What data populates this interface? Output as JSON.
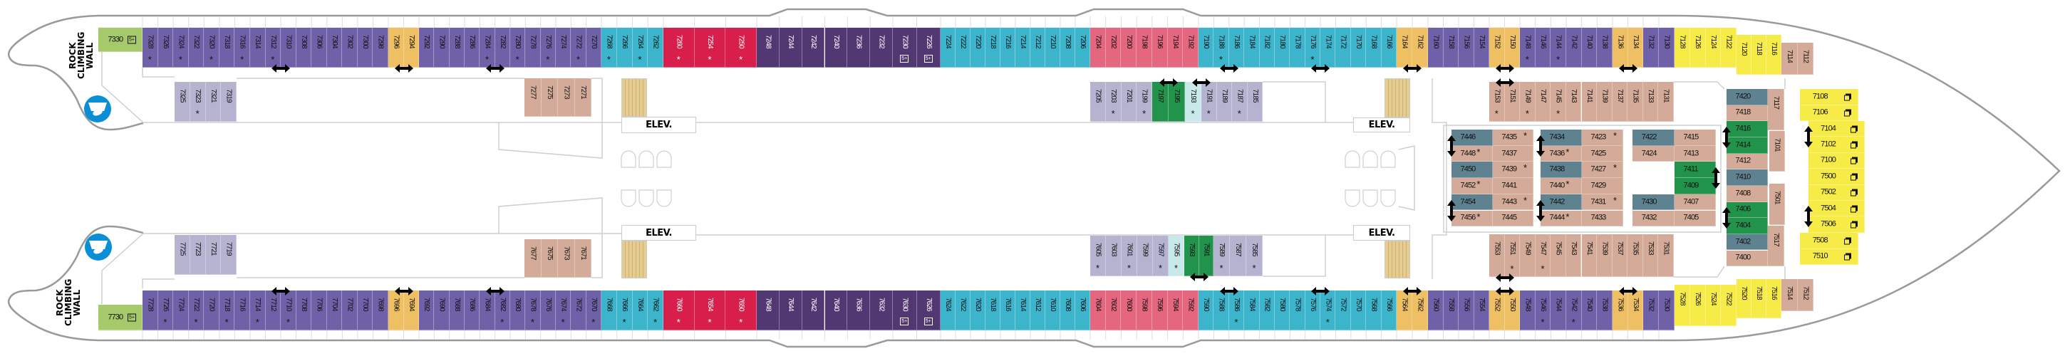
{
  "labels": {
    "rock_climbing_wall": "ROCK CLIMBING WALL",
    "elevator": "ELEV."
  },
  "icons": {
    "star": "star-icon",
    "five_plus": "five-plus-icon",
    "suite": "suite-icon",
    "connecting": "connecting-arrow-icon",
    "rock_wall": "rock-climbing-icon"
  },
  "icon_text": {
    "five_plus": "5+",
    "star": "*"
  },
  "colors": {
    "purple": "#6f61a8",
    "orange": "#efbf63",
    "teal": "#3bb4cc",
    "red": "#d81e4b",
    "dark_purple": "#513872",
    "pink": "#e5667f",
    "yellow": "#f7eb48",
    "tan": "#d3ab98",
    "green_light": "#a5c96b",
    "lavender": "#b6b3d1",
    "aqua_light": "#c9e8ea",
    "green": "#22934b",
    "slate": "#5f8291"
  },
  "top_outer": [
    {
      "cat": "green_light",
      "cabins": [
        "7330"
      ]
    },
    {
      "cat": "purple",
      "cabins": [
        "7328",
        "7326",
        "7324",
        "7322",
        "7320",
        "7318",
        "7316",
        "7314",
        "7312",
        "7310",
        "7308",
        "7306",
        "7304",
        "7302",
        "7300",
        "7298"
      ]
    },
    {
      "cat": "orange",
      "cabins": [
        "7296",
        "7294"
      ]
    },
    {
      "cat": "purple",
      "cabins": [
        "7292",
        "7290",
        "7288",
        "7286",
        "7284",
        "7282",
        "7280",
        "7278",
        "7276",
        "7274",
        "7272",
        "7270"
      ]
    },
    {
      "cat": "teal",
      "cabins": [
        "7268",
        "7266",
        "7264",
        "7262"
      ]
    },
    {
      "cat": "red",
      "cabins": [
        "7260",
        "7254",
        "7250"
      ]
    },
    {
      "cat": "dark_purple",
      "cabins": [
        "7248",
        "7244",
        "7242",
        "7240",
        "7236",
        "7232"
      ]
    },
    {
      "cat": "dark_purple",
      "cabins": [
        "7230",
        "7226"
      ]
    },
    {
      "cat": "teal",
      "cabins": [
        "7224",
        "7222",
        "7220",
        "7218",
        "7216",
        "7214",
        "7212",
        "7210",
        "7208",
        "7206"
      ]
    },
    {
      "cat": "pink",
      "cabins": [
        "7204",
        "7202",
        "7200",
        "7198",
        "7196",
        "7194",
        "7192"
      ]
    },
    {
      "cat": "teal",
      "cabins": [
        "7190",
        "7188",
        "7186",
        "7184",
        "7182",
        "7180",
        "7178",
        "7176",
        "7174",
        "7172",
        "7170",
        "7168",
        "7166"
      ]
    },
    {
      "cat": "orange",
      "cabins": [
        "7164",
        "7162"
      ]
    },
    {
      "cat": "purple",
      "cabins": [
        "7160",
        "7158",
        "7156",
        "7154"
      ]
    },
    {
      "cat": "orange",
      "cabins": [
        "7152",
        "7150"
      ]
    },
    {
      "cat": "purple",
      "cabins": [
        "7148",
        "7146",
        "7144",
        "7142",
        "7140",
        "7138"
      ]
    },
    {
      "cat": "orange",
      "cabins": [
        "7136",
        "7134"
      ]
    },
    {
      "cat": "purple",
      "cabins": [
        "7132",
        "7130"
      ]
    },
    {
      "cat": "yellow",
      "cabins": [
        "7128",
        "7126",
        "7124",
        "7122"
      ]
    },
    {
      "cat": "yellow",
      "cabins": [
        "7120",
        "7118",
        "7116"
      ]
    },
    {
      "cat": "tan",
      "cabins": [
        "7114",
        "7112"
      ]
    }
  ],
  "bottom_outer": [
    {
      "cat": "green_light",
      "cabins": [
        "7730"
      ]
    },
    {
      "cat": "purple",
      "cabins": [
        "7728",
        "7726",
        "7724",
        "7722",
        "7720",
        "7718",
        "7716",
        "7714",
        "7712",
        "7710",
        "7708",
        "7706",
        "7704",
        "7702",
        "7700",
        "7698"
      ]
    },
    {
      "cat": "orange",
      "cabins": [
        "7696",
        "7694"
      ]
    },
    {
      "cat": "purple",
      "cabins": [
        "7692",
        "7690",
        "7688",
        "7686",
        "7684",
        "7682",
        "7680",
        "7678",
        "7676",
        "7674",
        "7672",
        "7670"
      ]
    },
    {
      "cat": "teal",
      "cabins": [
        "7668",
        "7666",
        "7664",
        "7662"
      ]
    },
    {
      "cat": "red",
      "cabins": [
        "7660",
        "7654",
        "7650"
      ]
    },
    {
      "cat": "dark_purple",
      "cabins": [
        "7648",
        "7644",
        "7642",
        "7640",
        "7636",
        "7632"
      ]
    },
    {
      "cat": "dark_purple",
      "cabins": [
        "7630",
        "7626"
      ]
    },
    {
      "cat": "teal",
      "cabins": [
        "7624",
        "7622",
        "7620",
        "7618",
        "7616",
        "7614",
        "7612",
        "7610",
        "7608",
        "7606"
      ]
    },
    {
      "cat": "pink",
      "cabins": [
        "7604",
        "7602",
        "7600",
        "7598",
        "7596",
        "7594",
        "7592"
      ]
    },
    {
      "cat": "teal",
      "cabins": [
        "7590",
        "7588",
        "7586",
        "7584",
        "7582",
        "7580",
        "7578",
        "7576",
        "7574",
        "7572",
        "7570",
        "7568",
        "7566"
      ]
    },
    {
      "cat": "orange",
      "cabins": [
        "7564",
        "7562"
      ]
    },
    {
      "cat": "purple",
      "cabins": [
        "7560",
        "7558",
        "7556",
        "7554"
      ]
    },
    {
      "cat": "orange",
      "cabins": [
        "7552",
        "7550"
      ]
    },
    {
      "cat": "purple",
      "cabins": [
        "7548",
        "7546",
        "7544",
        "7542",
        "7540",
        "7538"
      ]
    },
    {
      "cat": "orange",
      "cabins": [
        "7536",
        "7534"
      ]
    },
    {
      "cat": "purple",
      "cabins": [
        "7532",
        "7530"
      ]
    },
    {
      "cat": "yellow",
      "cabins": [
        "7528",
        "7526",
        "7524",
        "7522"
      ]
    },
    {
      "cat": "yellow",
      "cabins": [
        "7520",
        "7518",
        "7516"
      ]
    },
    {
      "cat": "tan",
      "cabins": [
        "7514",
        "7512"
      ]
    }
  ],
  "top_inner": [
    {
      "cat": "lavender",
      "cabins": [
        "7325",
        "7323",
        "7321",
        "7319"
      ]
    },
    {
      "cat": "tan",
      "cabins": [
        "7277",
        "7275",
        "7273",
        "7271"
      ]
    },
    {
      "cat": "lavender",
      "cabins": [
        "7205",
        "7203",
        "7201",
        "7199"
      ]
    },
    {
      "cat": "green",
      "cabins": [
        "7197",
        "7195"
      ]
    },
    {
      "cat": "aqua_light",
      "cabins": [
        "7193"
      ]
    },
    {
      "cat": "lavender",
      "cabins": [
        "7191",
        "7189",
        "7187",
        "7185"
      ]
    },
    {
      "cat": "tan",
      "cabins": [
        "7153",
        "7151",
        "7149",
        "7147",
        "7145",
        "7143",
        "7141",
        "7139",
        "7137",
        "7135",
        "7133",
        "7131"
      ]
    }
  ],
  "bottom_inner": [
    {
      "cat": "lavender",
      "cabins": [
        "7725",
        "7723",
        "7721",
        "7719"
      ]
    },
    {
      "cat": "tan",
      "cabins": [
        "7677",
        "7675",
        "7673",
        "7671"
      ]
    },
    {
      "cat": "lavender",
      "cabins": [
        "7605",
        "7603",
        "7601",
        "7599",
        "7597"
      ]
    },
    {
      "cat": "aqua_light",
      "cabins": [
        "7595"
      ]
    },
    {
      "cat": "green",
      "cabins": [
        "7593",
        "7591"
      ]
    },
    {
      "cat": "lavender",
      "cabins": [
        "7589",
        "7587",
        "7585"
      ]
    },
    {
      "cat": "tan",
      "cabins": [
        "7553",
        "7551",
        "7549",
        "7547",
        "7545",
        "7543",
        "7541",
        "7539",
        "7537",
        "7535",
        "7533",
        "7531"
      ]
    }
  ],
  "forward_stacks": [
    {
      "cells": [
        {
          "n": "7446",
          "cat": "slate"
        },
        {
          "n": "7448",
          "cat": "tan"
        },
        {
          "n": "7450",
          "cat": "slate"
        },
        {
          "n": "7452",
          "cat": "tan"
        },
        {
          "n": "7454",
          "cat": "slate"
        },
        {
          "n": "7456",
          "cat": "tan"
        }
      ]
    },
    {
      "cells": [
        {
          "n": "7435",
          "cat": "tan"
        },
        {
          "n": "7437",
          "cat": "tan"
        },
        {
          "n": "7439",
          "cat": "tan"
        },
        {
          "n": "7441",
          "cat": "tan"
        },
        {
          "n": "7443",
          "cat": "tan"
        },
        {
          "n": "7445",
          "cat": "tan"
        }
      ]
    },
    {
      "cells": [
        {
          "n": "7434",
          "cat": "slate"
        },
        {
          "n": "7436",
          "cat": "tan"
        },
        {
          "n": "7438",
          "cat": "slate"
        },
        {
          "n": "7440",
          "cat": "tan"
        },
        {
          "n": "7442",
          "cat": "slate"
        },
        {
          "n": "7444",
          "cat": "tan"
        }
      ]
    },
    {
      "cells": [
        {
          "n": "7423",
          "cat": "tan"
        },
        {
          "n": "7425",
          "cat": "tan"
        },
        {
          "n": "7427",
          "cat": "tan"
        },
        {
          "n": "7429",
          "cat": "tan"
        },
        {
          "n": "7431",
          "cat": "tan"
        },
        {
          "n": "7433",
          "cat": "tan"
        }
      ]
    },
    {
      "cells": [
        {
          "n": "7422",
          "cat": "slate"
        },
        {
          "n": "7424",
          "cat": "tan"
        },
        null,
        null,
        {
          "n": "7430",
          "cat": "slate"
        },
        {
          "n": "7432",
          "cat": "tan"
        }
      ]
    },
    {
      "cells": [
        {
          "n": "7415",
          "cat": "tan"
        },
        {
          "n": "7413",
          "cat": "tan"
        },
        {
          "n": "7411",
          "cat": "green"
        },
        {
          "n": "7409",
          "cat": "green"
        },
        {
          "n": "7407",
          "cat": "tan"
        },
        {
          "n": "7405",
          "cat": "tan"
        }
      ]
    },
    {
      "cells": [
        {
          "n": "7420",
          "cat": "slate"
        },
        {
          "n": "7418",
          "cat": "tan"
        },
        {
          "n": "7416",
          "cat": "green"
        },
        {
          "n": "7414",
          "cat": "green"
        },
        {
          "n": "7412",
          "cat": "tan"
        },
        {
          "n": "7410",
          "cat": "slate"
        },
        {
          "n": "7408",
          "cat": "tan"
        },
        {
          "n": "7406",
          "cat": "green"
        },
        {
          "n": "7404",
          "cat": "green"
        },
        {
          "n": "7402",
          "cat": "slate"
        },
        {
          "n": "7400",
          "cat": "tan"
        }
      ]
    },
    {
      "cells": [
        {
          "n": "7108",
          "cat": "yellow"
        },
        {
          "n": "7106",
          "cat": "yellow"
        }
      ]
    },
    {
      "cells": [
        {
          "n": "7104",
          "cat": "yellow"
        },
        {
          "n": "7102",
          "cat": "yellow"
        },
        {
          "n": "7100",
          "cat": "yellow"
        },
        {
          "n": "7500",
          "cat": "yellow"
        },
        {
          "n": "7502",
          "cat": "yellow"
        },
        {
          "n": "7504",
          "cat": "yellow"
        },
        {
          "n": "7506",
          "cat": "yellow"
        }
      ]
    },
    {
      "cells": [
        {
          "n": "7508",
          "cat": "yellow"
        },
        {
          "n": "7510",
          "cat": "yellow"
        }
      ]
    }
  ],
  "forward_singles": [
    {
      "n": "7117",
      "cat": "tan"
    },
    {
      "n": "7101",
      "cat": "tan"
    },
    {
      "n": "7501",
      "cat": "tan"
    },
    {
      "n": "7517",
      "cat": "tan"
    }
  ],
  "starred": [
    "7328",
    "7324",
    "7320",
    "7316",
    "7312",
    "7284",
    "7280",
    "7276",
    "7272",
    "7268",
    "7264",
    "7260",
    "7254",
    "7250",
    "7188",
    "7176",
    "7148",
    "7144",
    "7726",
    "7722",
    "7718",
    "7714",
    "7710",
    "7682",
    "7678",
    "7674",
    "7670",
    "7666",
    "7662",
    "7660",
    "7654",
    "7650",
    "7586",
    "7574",
    "7546",
    "7542",
    "7323",
    "7203",
    "7199",
    "7193",
    "7191",
    "7187",
    "7153",
    "7149",
    "7145",
    "7605",
    "7601",
    "7597",
    "7595",
    "7589",
    "7585",
    "7551",
    "7547",
    "7448",
    "7452",
    "7456",
    "7435",
    "7439",
    "7443",
    "7436",
    "7440",
    "7444",
    "7423",
    "7427",
    "7431"
  ],
  "five_plus": [
    "7330",
    "7230",
    "7226",
    "7730",
    "7630",
    "7626"
  ],
  "suite_icon": [
    "7108",
    "7106",
    "7104",
    "7102",
    "7100",
    "7500",
    "7502",
    "7504",
    "7506",
    "7508",
    "7510"
  ],
  "connecting": [
    [
      "7312",
      "7310"
    ],
    [
      "7296",
      "7294"
    ],
    [
      "7284",
      "7282"
    ],
    [
      "7188",
      "7186"
    ],
    [
      "7176",
      "7174"
    ],
    [
      "7164",
      "7162"
    ],
    [
      "7152",
      "7150"
    ],
    [
      "7136",
      "7134"
    ],
    [
      "7197",
      "7195"
    ],
    [
      "7193",
      "7191"
    ],
    [
      "7153",
      "7151"
    ],
    [
      "7712",
      "7710"
    ],
    [
      "7696",
      "7694"
    ],
    [
      "7684",
      "7682"
    ],
    [
      "7588",
      "7586"
    ],
    [
      "7576",
      "7574"
    ],
    [
      "7564",
      "7562"
    ],
    [
      "7552",
      "7550"
    ],
    [
      "7536",
      "7534"
    ],
    [
      "7593",
      "7591"
    ],
    [
      "7553",
      "7551"
    ],
    [
      "7446",
      "7448"
    ],
    [
      "7454",
      "7456"
    ],
    [
      "7434",
      "7436"
    ],
    [
      "7442",
      "7444"
    ],
    [
      "7411",
      "7409"
    ],
    [
      "7416",
      "7414"
    ],
    [
      "7406",
      "7404"
    ],
    [
      "7104",
      "7102"
    ],
    [
      "7504",
      "7506"
    ]
  ]
}
